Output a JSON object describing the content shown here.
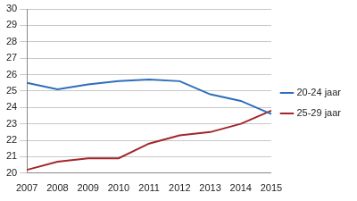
{
  "chart_data": {
    "type": "line",
    "categories": [
      "2007",
      "2008",
      "2009",
      "2010",
      "2011",
      "2012",
      "2013",
      "2014",
      "2015"
    ],
    "series": [
      {
        "name": "20-24 jaar",
        "color": "#2f6eba",
        "values": [
          25.5,
          25.1,
          25.4,
          25.6,
          25.7,
          25.6,
          24.8,
          24.4,
          23.6
        ]
      },
      {
        "name": "25-29 jaar",
        "color": "#a3262a",
        "values": [
          20.2,
          20.7,
          20.9,
          20.9,
          21.8,
          22.3,
          22.5,
          23.0,
          23.8
        ]
      }
    ],
    "ylim": [
      20,
      30
    ],
    "yticks": [
      20,
      21,
      22,
      23,
      24,
      25,
      26,
      27,
      28,
      29,
      30
    ],
    "grid": true,
    "legend": "right"
  }
}
